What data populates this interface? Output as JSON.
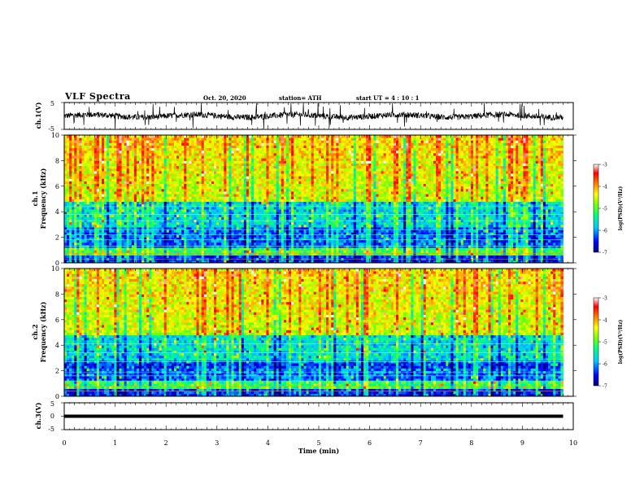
{
  "header": {
    "title": "VLF Spectra",
    "date": "Oct. 20, 2020",
    "station": "station= ATH",
    "start_time": "start  UT =  4 : 10 : 1"
  },
  "colors": {
    "scale": [
      "#00007a",
      "#0000ff",
      "#00aaff",
      "#00ffff",
      "#00ff66",
      "#66ff00",
      "#ccff00",
      "#ffff00",
      "#ffaa00",
      "#ff4400",
      "#ff0000",
      "#ffffff"
    ]
  },
  "chart_data": [
    {
      "type": "line",
      "id": "ch1-waveform",
      "ylabel": "ch.1(V)",
      "ylim": [
        -5,
        5
      ],
      "yticks": [
        "5",
        "-5"
      ],
      "xlim": [
        0,
        10
      ]
    },
    {
      "type": "heatmap",
      "id": "ch1-spectrogram",
      "ylabel_line1": "ch.1",
      "ylabel_line2": "Frequency  (kHz)",
      "ylim": [
        0,
        10
      ],
      "yticks": [
        "0",
        "2",
        "4",
        "6",
        "8",
        "10"
      ],
      "xlim": [
        0,
        10
      ],
      "data_xmax": 9.8,
      "colorbar": {
        "label": "log(PSD)(V²/Hz)",
        "range": [
          -7,
          -3
        ],
        "ticks": [
          "-3",
          "-4",
          "-5",
          "-6",
          "-7"
        ]
      }
    },
    {
      "type": "heatmap",
      "id": "ch2-spectrogram",
      "ylabel_line1": "ch.2",
      "ylabel_line2": "Frequency  (kHz)",
      "ylim": [
        0,
        10
      ],
      "yticks": [
        "0",
        "2",
        "4",
        "6",
        "8",
        "10"
      ],
      "xlim": [
        0,
        10
      ],
      "data_xmax": 9.8,
      "colorbar": {
        "label": "log(PSD)(V²/Hz)",
        "range": [
          -7,
          -3
        ],
        "ticks": [
          "-3",
          "-4",
          "-5",
          "-6",
          "-7"
        ]
      }
    },
    {
      "type": "line",
      "id": "ch3-waveform",
      "ylabel": "ch.3(V)",
      "ylim": [
        -5,
        5
      ],
      "yticks": [
        "5",
        "0",
        "-5"
      ],
      "xlim": [
        0,
        10
      ],
      "xlabel": "Time  (min)",
      "xticks": [
        "0",
        "1",
        "2",
        "3",
        "4",
        "5",
        "6",
        "7",
        "8",
        "9",
        "10"
      ],
      "constant_value": 0
    }
  ]
}
